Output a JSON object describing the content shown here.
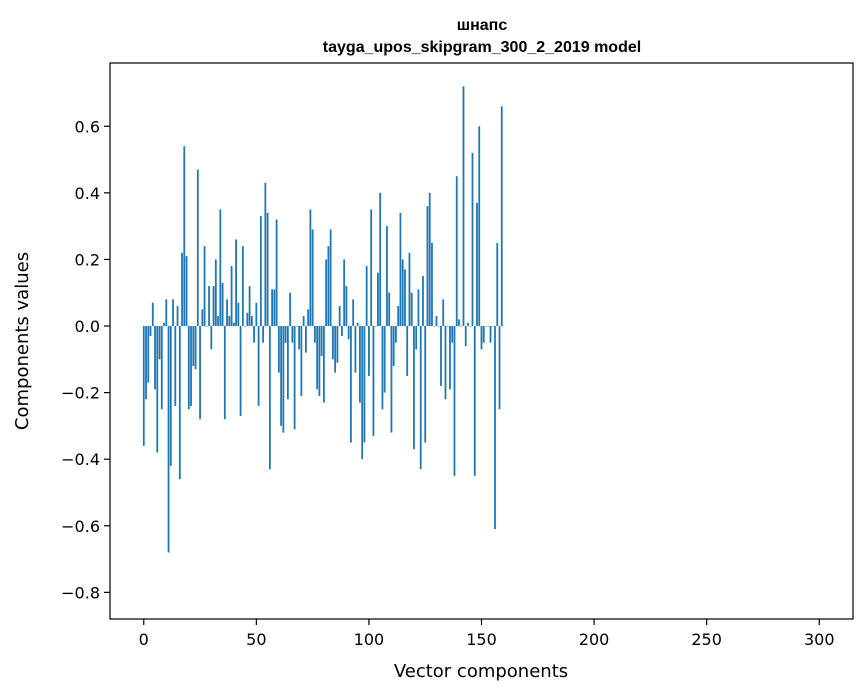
{
  "chart_data": {
    "type": "bar",
    "title": "шнапс",
    "subtitle": "tayga_upos_skipgram_300_2_2019 model",
    "xlabel": "Vector components",
    "ylabel": "Components values",
    "xlim": [
      -15,
      315
    ],
    "ylim": [
      -0.88,
      0.79
    ],
    "xticks": [
      0,
      50,
      100,
      150,
      200,
      250,
      300
    ],
    "yticks": [
      -0.8,
      -0.6,
      -0.4,
      -0.2,
      0.0,
      0.2,
      0.4,
      0.6
    ],
    "ytick_labels": [
      "−0.8",
      "−0.6",
      "−0.4",
      "−0.2",
      "0.0",
      "0.2",
      "0.4",
      "0.6"
    ],
    "grid": false,
    "bar_color": "#1f77b4",
    "values": [
      -0.36,
      -0.22,
      -0.17,
      -0.03,
      0.07,
      -0.19,
      -0.38,
      -0.1,
      -0.25,
      0.01,
      0.08,
      -0.68,
      -0.42,
      0.08,
      -0.24,
      0.06,
      -0.46,
      0.22,
      0.54,
      0.21,
      -0.25,
      -0.24,
      -0.12,
      -0.13,
      0.47,
      -0.28,
      0.05,
      0.24,
      0.0,
      0.12,
      -0.07,
      0.12,
      0.2,
      0.03,
      0.35,
      0.13,
      -0.28,
      0.08,
      0.03,
      0.18,
      0.01,
      0.26,
      0.07,
      -0.27,
      0.24,
      0.0,
      0.04,
      0.12,
      0.03,
      -0.05,
      0.07,
      -0.24,
      0.33,
      -0.05,
      0.43,
      0.34,
      -0.43,
      0.11,
      0.11,
      0.32,
      -0.14,
      -0.3,
      -0.32,
      -0.05,
      -0.22,
      0.1,
      -0.05,
      -0.31,
      0.0,
      -0.07,
      -0.21,
      0.03,
      -0.08,
      0.05,
      0.35,
      0.29,
      -0.05,
      -0.19,
      -0.21,
      -0.09,
      -0.23,
      0.2,
      0.24,
      0.29,
      -0.1,
      -0.14,
      -0.11,
      0.06,
      -0.03,
      0.2,
      0.12,
      -0.04,
      -0.35,
      0.08,
      -0.14,
      0.01,
      -0.23,
      -0.4,
      -0.35,
      0.18,
      -0.15,
      0.35,
      -0.33,
      0.0,
      0.16,
      0.4,
      -0.25,
      -0.2,
      0.3,
      0.1,
      -0.32,
      -0.12,
      -0.05,
      0.06,
      0.34,
      0.2,
      0.17,
      -0.15,
      0.22,
      0.1,
      -0.37,
      -0.07,
      0.11,
      -0.43,
      0.15,
      -0.35,
      0.36,
      0.4,
      0.25,
      0.0,
      0.03,
      0.0,
      -0.18,
      0.08,
      -0.22,
      0.0,
      -0.19,
      -0.05,
      -0.45,
      0.45,
      0.02,
      0.0,
      0.72,
      -0.06,
      0.01,
      0.0,
      0.52,
      -0.45,
      0.37,
      0.6,
      -0.07,
      -0.05,
      0.0,
      0.0,
      -0.05,
      0.0,
      -0.61,
      0.25,
      -0.25,
      0.66
    ]
  }
}
